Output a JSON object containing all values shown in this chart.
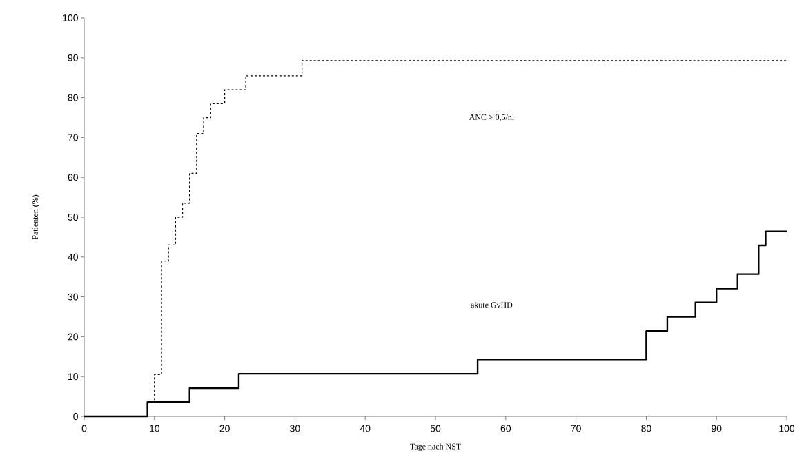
{
  "chart_data": {
    "type": "step",
    "xlabel": "Tage nach NST",
    "ylabel": "Patienten (%)",
    "xlim": [
      0,
      100
    ],
    "ylim": [
      0,
      100
    ],
    "xticks": [
      0,
      10,
      20,
      30,
      40,
      50,
      60,
      70,
      80,
      90,
      100
    ],
    "yticks": [
      0,
      10,
      20,
      30,
      40,
      50,
      60,
      70,
      80,
      90,
      100
    ],
    "grid": false,
    "marker": "none",
    "series": [
      {
        "color": "#000000",
        "line_style": "dashed",
        "x": [
          0,
          9,
          10,
          11,
          12,
          13,
          14,
          15,
          16,
          17,
          18,
          20,
          23,
          31,
          100
        ],
        "values": [
          0,
          3.6,
          10.5,
          39,
          43,
          50,
          53.5,
          61,
          71,
          75,
          78.5,
          82,
          85.5,
          89.3,
          89.3
        ]
      },
      {
        "color": "#000000",
        "line_style": "solid",
        "x": [
          0,
          9,
          15,
          22,
          56,
          80,
          83,
          87,
          90,
          93,
          96,
          97,
          100
        ],
        "values": [
          0,
          3.6,
          7.1,
          10.7,
          14.3,
          21.4,
          25,
          28.6,
          32.1,
          35.7,
          42.9,
          46.4,
          46.4
        ]
      }
    ],
    "annotations": [
      "ANC > 0,5/nl",
      "akute GvHD"
    ]
  }
}
